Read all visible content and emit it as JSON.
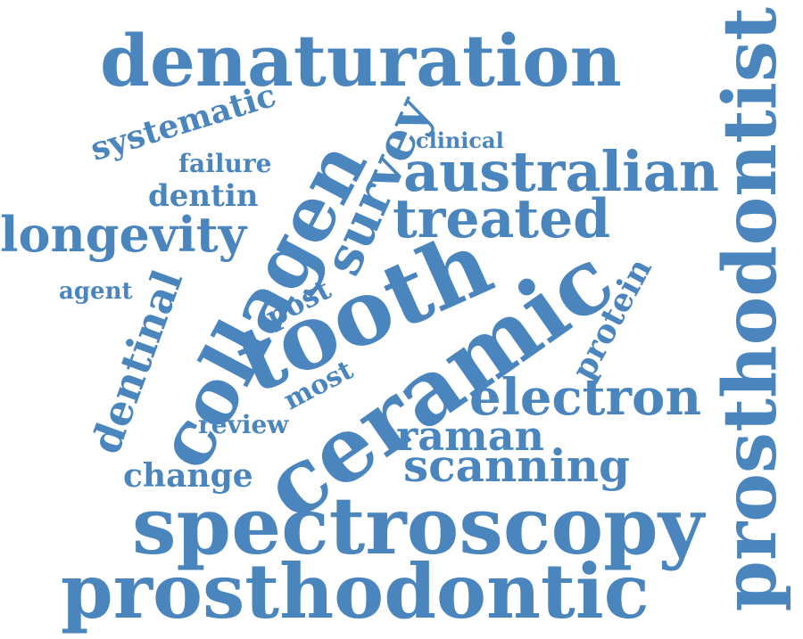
{
  "word_cloud": {
    "color": "#4a86bd",
    "words": {
      "denaturation": "denaturation",
      "prosthodontist": "prosthodontist",
      "systematic": "systematic",
      "failure": "failure",
      "dentin": "dentin",
      "longevity": "longevity",
      "agent": "agent",
      "collagen": "collagen",
      "survey": "survey",
      "clinical": "clinical",
      "australian": "australian",
      "treated": "treated",
      "tooth": "tooth",
      "ceramic": "ceramic",
      "protein": "protein",
      "post": "post",
      "most": "most",
      "dentinal": "dentinal",
      "review": "review",
      "electron": "electron",
      "raman": "raman",
      "scanning": "scanning",
      "change": "change",
      "spectroscopy": "spectroscopy",
      "prosthodontic": "prosthodontic"
    }
  }
}
